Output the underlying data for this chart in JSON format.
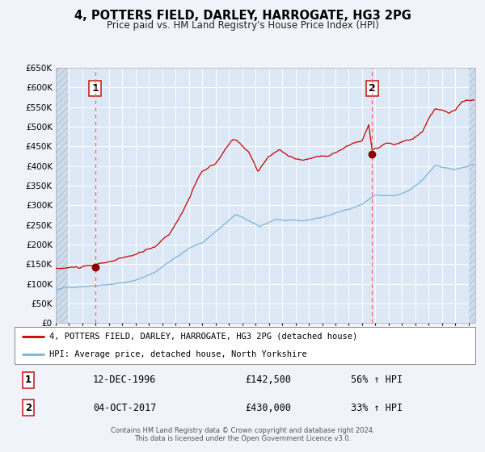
{
  "title": "4, POTTERS FIELD, DARLEY, HARROGATE, HG3 2PG",
  "subtitle": "Price paid vs. HM Land Registry's House Price Index (HPI)",
  "sale1_year": 1996.95,
  "sale1_price": 142500,
  "sale2_year": 2017.75,
  "sale2_price": 430000,
  "legend_line1": "4, POTTERS FIELD, DARLEY, HARROGATE, HG3 2PG (detached house)",
  "legend_line2": "HPI: Average price, detached house, North Yorkshire",
  "table_row1_label": "1",
  "table_row1_date": "12-DEC-1996",
  "table_row1_price": "£142,500",
  "table_row1_hpi": "56% ↑ HPI",
  "table_row2_label": "2",
  "table_row2_date": "04-OCT-2017",
  "table_row2_price": "£430,000",
  "table_row2_hpi": "33% ↑ HPI",
  "footer1": "Contains HM Land Registry data © Crown copyright and database right 2024.",
  "footer2": "This data is licensed under the Open Government Licence v3.0.",
  "hpi_line_color": "#7ab3d8",
  "price_line_color": "#cc0000",
  "sale_dot_color": "#880000",
  "vline_color": "#ff6666",
  "bg_color": "#f0f4fa",
  "plot_bg_color": "#dce8f5",
  "grid_color": "#ffffff",
  "box_edge_color": "#cc2222",
  "hatch_color": "#c8d4e0",
  "ylim_min": 0,
  "ylim_max": 650000,
  "xmin": 1994.0,
  "xmax": 2025.5
}
